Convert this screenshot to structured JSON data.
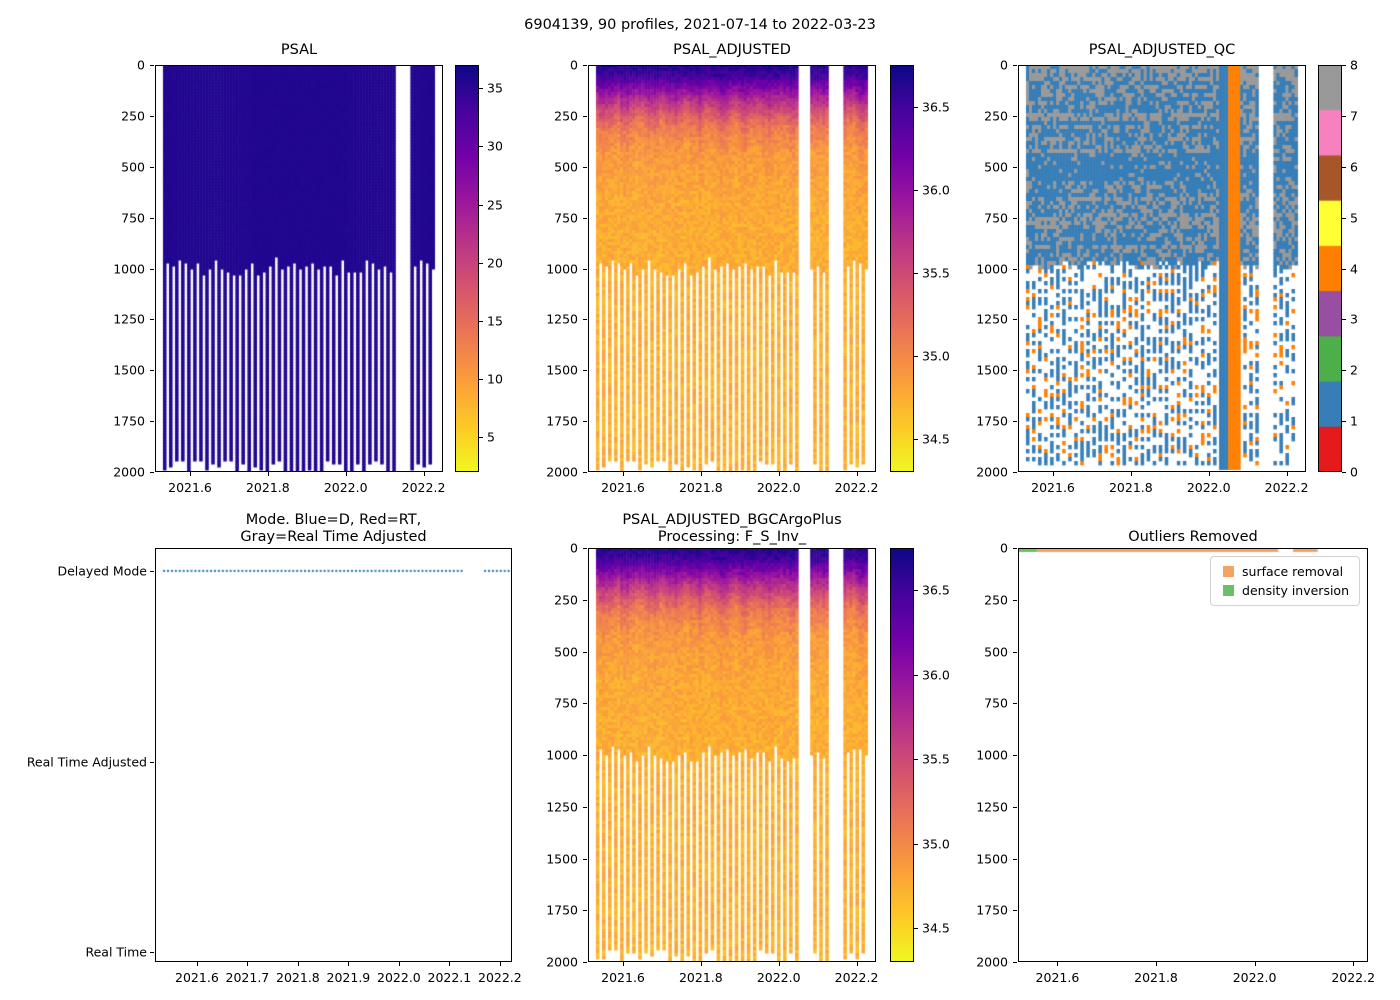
{
  "figure": {
    "suptitle": "6904139, 90 profiles, 2021-07-14 to 2022-03-23",
    "background_color": "#ffffff"
  },
  "palette": {
    "plasma_stops": [
      "#0d0887",
      "#46039f",
      "#7201a8",
      "#9c179e",
      "#bd3786",
      "#d8576b",
      "#ed7953",
      "#fb9f3a",
      "#fdca26",
      "#f0f921"
    ],
    "qc_set1": [
      "#e41a1c",
      "#377eb8",
      "#4daf4a",
      "#984ea3",
      "#ff7f00",
      "#ffff33",
      "#a65628",
      "#f781bf",
      "#999999"
    ]
  },
  "chart_data": [
    {
      "id": "psal",
      "type": "heatmap",
      "title": "PSAL",
      "x_tick_labels": [
        "2021.6",
        "2021.8",
        "2022.0",
        "2022.2"
      ],
      "x_range": [
        2021.51,
        2022.25
      ],
      "y_tick_labels": [
        "0",
        "250",
        "500",
        "750",
        "1000",
        "1250",
        "1500",
        "1750",
        "2000"
      ],
      "y_range": [
        0,
        2000
      ],
      "y_axis_inverted": true,
      "colormap": "plasma_r",
      "vmin": 2,
      "vmax": 37,
      "colorbar_tick_labels": [
        "5",
        "10",
        "15",
        "20",
        "25",
        "30",
        "35"
      ],
      "profiles": {
        "count": 90,
        "t_start": 2021.535,
        "t_end": 2022.225,
        "shallow_max_depth_m": 1000,
        "deep_max_depth_m": 1990,
        "deep_profile_interval": 2
      },
      "missing_profile_gaps": [
        [
          2022.128,
          2022.168
        ]
      ],
      "depth_salinity_profile": [
        [
          0,
          35.45
        ],
        [
          60,
          35.55
        ],
        [
          2000,
          35.6
        ]
      ],
      "noise_amplitude": 0.15
    },
    {
      "id": "psal_adjusted",
      "type": "heatmap",
      "title": "PSAL_ADJUSTED",
      "x_tick_labels": [
        "2021.6",
        "2021.8",
        "2022.0",
        "2022.2"
      ],
      "x_range": [
        2021.51,
        2022.25
      ],
      "y_tick_labels": [
        "0",
        "250",
        "500",
        "750",
        "1000",
        "1250",
        "1500",
        "1750",
        "2000"
      ],
      "y_range": [
        0,
        2000
      ],
      "y_axis_inverted": true,
      "colormap": "plasma_r",
      "vmin": 34.3,
      "vmax": 36.75,
      "colorbar_tick_labels": [
        "34.5",
        "35.0",
        "35.5",
        "36.0",
        "36.5"
      ],
      "profiles": {
        "count": 90,
        "t_start": 2021.535,
        "t_end": 2022.225,
        "shallow_max_depth_m": 1000,
        "deep_max_depth_m": 1990,
        "deep_profile_interval": 2
      },
      "missing_profile_gaps": [
        [
          2022.048,
          2022.078
        ],
        [
          2022.128,
          2022.168
        ]
      ],
      "depth_salinity_profile": [
        [
          0,
          36.62
        ],
        [
          45,
          36.5
        ],
        [
          90,
          36.2
        ],
        [
          140,
          35.9
        ],
        [
          210,
          35.5
        ],
        [
          300,
          35.1
        ],
        [
          430,
          34.88
        ],
        [
          650,
          34.78
        ],
        [
          1000,
          34.74
        ],
        [
          2000,
          34.73
        ]
      ],
      "noise_amplitude": 0.12
    },
    {
      "id": "psal_adjusted_qc",
      "type": "heatmap",
      "title": "PSAL_ADJUSTED_QC",
      "x_tick_labels": [
        "2021.6",
        "2021.8",
        "2022.0",
        "2022.2"
      ],
      "x_range": [
        2021.51,
        2022.25
      ],
      "y_tick_labels": [
        "0",
        "250",
        "500",
        "750",
        "1000",
        "1250",
        "1500",
        "1750",
        "2000"
      ],
      "y_range": [
        0,
        2000
      ],
      "y_axis_inverted": true,
      "vmin": 0,
      "vmax": 8,
      "colorbar_tick_labels": [
        "0",
        "1",
        "2",
        "3",
        "4",
        "5",
        "6",
        "7",
        "8"
      ],
      "dominant_flags": [
        1,
        8
      ],
      "profiles": {
        "count": 90,
        "t_start": 2021.535,
        "t_end": 2022.225,
        "shallow_max_depth_m": 1000,
        "deep_max_depth_m": 1990,
        "deep_profile_interval": 2
      },
      "missing_profile_gaps": [
        [
          2022.128,
          2022.168
        ]
      ],
      "special_columns": [
        {
          "t_range": [
            2022.028,
            2022.047
          ],
          "flag": 1
        },
        {
          "t_range": [
            2022.048,
            2022.078
          ],
          "flag": 4
        }
      ]
    },
    {
      "id": "mode",
      "type": "scatter",
      "title_lines": [
        "Mode. Blue=D, Red=RT,",
        "Gray=Real Time Adjusted"
      ],
      "x_tick_labels": [
        "2021.6",
        "2021.7",
        "2021.8",
        "2021.9",
        "2022.0",
        "2022.1",
        "2022.2"
      ],
      "x_range": [
        2021.517,
        2022.224
      ],
      "y_categories": [
        {
          "label": "Delayed Mode",
          "value": 2
        },
        {
          "label": "Real Time Adjusted",
          "value": 1
        },
        {
          "label": "Real Time",
          "value": 0
        }
      ],
      "y_range": [
        -0.05,
        2.12
      ],
      "marker_color": "#1f77b4",
      "mode_value_for_all_profiles": 2,
      "profiles": {
        "count": 90,
        "t_start": 2021.535,
        "t_end": 2022.225
      },
      "missing_profile_gaps": [
        [
          2022.128,
          2022.168
        ]
      ]
    },
    {
      "id": "psal_adjusted_bgc",
      "type": "heatmap",
      "title_lines": [
        "PSAL_ADJUSTED_BGCArgoPlus",
        "Processing: F_S_Inv_"
      ],
      "x_tick_labels": [
        "2021.6",
        "2021.8",
        "2022.0",
        "2022.2"
      ],
      "x_range": [
        2021.51,
        2022.25
      ],
      "y_tick_labels": [
        "0",
        "250",
        "500",
        "750",
        "1000",
        "1250",
        "1500",
        "1750",
        "2000"
      ],
      "y_range": [
        0,
        2000
      ],
      "y_axis_inverted": true,
      "colormap": "plasma_r",
      "vmin": 34.3,
      "vmax": 36.75,
      "colorbar_tick_labels": [
        "34.5",
        "35.0",
        "35.5",
        "36.0",
        "36.5"
      ],
      "profiles": {
        "count": 90,
        "t_start": 2021.535,
        "t_end": 2022.225,
        "shallow_max_depth_m": 1000,
        "deep_max_depth_m": 1990,
        "deep_profile_interval": 2
      },
      "missing_profile_gaps": [
        [
          2022.048,
          2022.078
        ],
        [
          2022.128,
          2022.168
        ]
      ],
      "depth_salinity_profile": [
        [
          0,
          36.62
        ],
        [
          45,
          36.5
        ],
        [
          90,
          36.2
        ],
        [
          140,
          35.9
        ],
        [
          210,
          35.5
        ],
        [
          300,
          35.1
        ],
        [
          430,
          34.88
        ],
        [
          650,
          34.78
        ],
        [
          1000,
          34.74
        ],
        [
          2000,
          34.73
        ]
      ],
      "noise_amplitude": 0.12
    },
    {
      "id": "outliers",
      "type": "line",
      "title": "Outliers Removed",
      "x_tick_labels": [
        "2021.6",
        "2021.8",
        "2022.0",
        "2022.2"
      ],
      "x_range": [
        2021.52,
        2022.23
      ],
      "y_tick_labels": [
        "0",
        "250",
        "500",
        "750",
        "1000",
        "1250",
        "1500",
        "1750",
        "2000"
      ],
      "y_range": [
        0,
        2000
      ],
      "y_axis_inverted": true,
      "legend": [
        {
          "label": "surface removal",
          "color": "#f4a460"
        },
        {
          "label": "density inversion",
          "color": "#6abf69"
        }
      ],
      "segments": [
        {
          "series": "surface removal",
          "color": "#f4a460",
          "t_start": 2021.535,
          "t_end": 2022.048,
          "depth_m": 8
        },
        {
          "series": "surface removal",
          "color": "#f4a460",
          "t_start": 2022.078,
          "t_end": 2022.128,
          "depth_m": 8
        },
        {
          "series": "density inversion",
          "color": "#6abf69",
          "t_start": 2021.52,
          "t_end": 2021.558,
          "depth_m": 4
        }
      ]
    }
  ]
}
